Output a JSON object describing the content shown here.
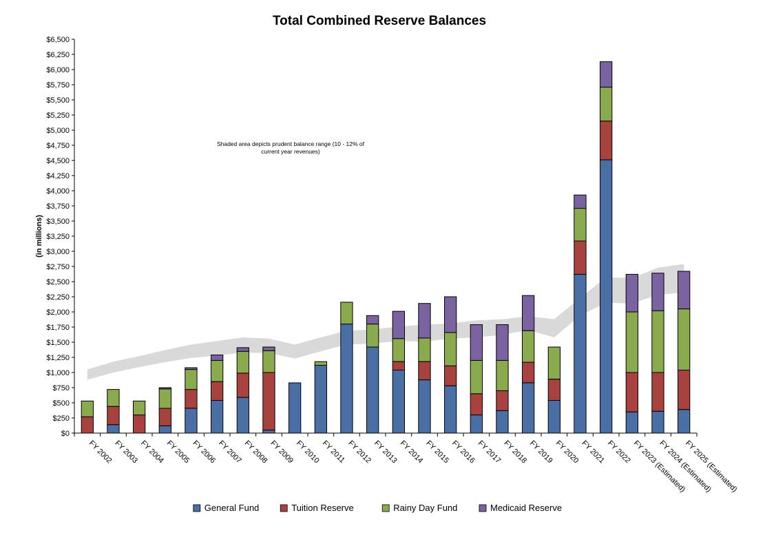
{
  "chart_data": {
    "type": "bar",
    "stacked": true,
    "title": "Total Combined Reserve Balances",
    "ylabel": "(in millions)",
    "xlabel": "",
    "ylim": [
      0,
      6500
    ],
    "ytick_step": 250,
    "ytick_prefix": "$",
    "grid": false,
    "legend_position": "bottom",
    "annotation": [
      "Shaded area depicts prudent balance range (10 - 12% of",
      "current year revenues)"
    ],
    "categories": [
      "FY 2002",
      "FY 2003",
      "FY 2004",
      "FY 2005",
      "FY 2006",
      "FY 2007",
      "FY 2008",
      "FY 2009",
      "FY 2010",
      "FY 2011",
      "FY 2012",
      "FY 2013",
      "FY 2014",
      "FY 2015",
      "FY 2016",
      "FY 2017",
      "FY 2018",
      "FY 2019",
      "FY 2020",
      "FY 2021",
      "FY 2022",
      "FY 2023 (Estimated)",
      "FY 2024 (Estimated)",
      "FY 2025 (Estimated)"
    ],
    "series": [
      {
        "name": "General Fund",
        "color": "#4a6fa5",
        "values": [
          0,
          140,
          0,
          120,
          410,
          540,
          590,
          50,
          830,
          1120,
          1800,
          1420,
          1040,
          880,
          780,
          300,
          370,
          830,
          540,
          2620,
          4510,
          350,
          360,
          390
        ]
      },
      {
        "name": "Tuition Reserve",
        "color": "#a8423f",
        "values": [
          270,
          300,
          300,
          290,
          310,
          310,
          400,
          950,
          0,
          0,
          0,
          0,
          140,
          300,
          330,
          350,
          330,
          340,
          350,
          550,
          640,
          650,
          640,
          650
        ]
      },
      {
        "name": "Rainy Day Fund",
        "color": "#8aaa4e",
        "values": [
          260,
          280,
          230,
          320,
          330,
          350,
          360,
          360,
          0,
          60,
          360,
          380,
          380,
          390,
          550,
          550,
          500,
          520,
          530,
          540,
          560,
          1000,
          1020,
          1010
        ]
      },
      {
        "name": "Medicaid Reserve",
        "color": "#7b62a0",
        "values": [
          0,
          0,
          0,
          20,
          30,
          90,
          60,
          60,
          0,
          0,
          0,
          140,
          450,
          570,
          590,
          590,
          590,
          580,
          0,
          220,
          420,
          620,
          620,
          620
        ]
      }
    ],
    "prudent_range": {
      "color": "#d9d9d9",
      "lower": [
        880,
        1000,
        1090,
        1170,
        1240,
        1280,
        1330,
        1320,
        1230,
        1350,
        1460,
        1480,
        1520,
        1510,
        1560,
        1580,
        1620,
        1700,
        1580,
        1940,
        2150,
        2140,
        2280,
        2320
      ],
      "upper": [
        1050,
        1180,
        1270,
        1370,
        1460,
        1520,
        1580,
        1560,
        1460,
        1580,
        1690,
        1710,
        1760,
        1790,
        1810,
        1860,
        1880,
        1930,
        1880,
        2230,
        2570,
        2560,
        2730,
        2790
      ]
    }
  }
}
